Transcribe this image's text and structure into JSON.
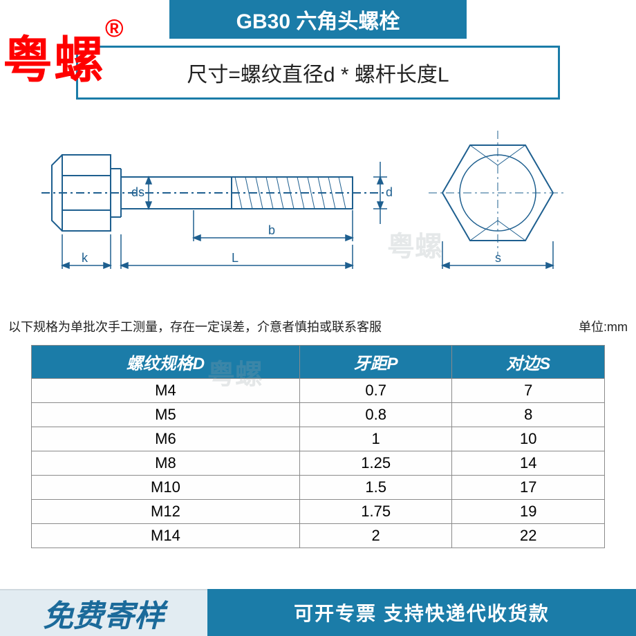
{
  "header": {
    "title": "GB30 六角头螺栓",
    "subtitle": "尺寸=螺纹直径d * 螺杆长度L"
  },
  "brand": {
    "text": "粤螺",
    "reg": "®"
  },
  "diagram": {
    "labels": {
      "ds": "ds",
      "b": "b",
      "k": "k",
      "L": "L",
      "d": "d",
      "s": "s"
    },
    "stroke": "#1e5f8f",
    "dash_color": "#1e5f8f",
    "side_width": 520,
    "top_width": 260
  },
  "watermark": "粤螺",
  "notes": {
    "left": "以下规格为单批次手工测量，存在一定误差，介意者慎拍或联系客服",
    "right": "单位:mm"
  },
  "table": {
    "columns": [
      "螺纹规格D",
      "牙距P",
      "对边S"
    ],
    "rows": [
      [
        "M4",
        "0.7",
        "7"
      ],
      [
        "M5",
        "0.8",
        "8"
      ],
      [
        "M6",
        "1",
        "10"
      ],
      [
        "M8",
        "1.25",
        "14"
      ],
      [
        "M10",
        "1.5",
        "17"
      ],
      [
        "M12",
        "1.75",
        "19"
      ],
      [
        "M14",
        "2",
        "22"
      ]
    ],
    "header_bg": "#1b7ca8",
    "header_fg": "#ffffff",
    "border_color": "#8a8a8a",
    "cell_fontsize": 22
  },
  "footer": {
    "left": "免费寄样",
    "right": "可开专票 支持快递代收货款",
    "left_bg": "#e2ecf2",
    "left_fg": "#1b6a9a",
    "right_bg": "#1b7ca8",
    "right_fg": "#ffffff"
  }
}
